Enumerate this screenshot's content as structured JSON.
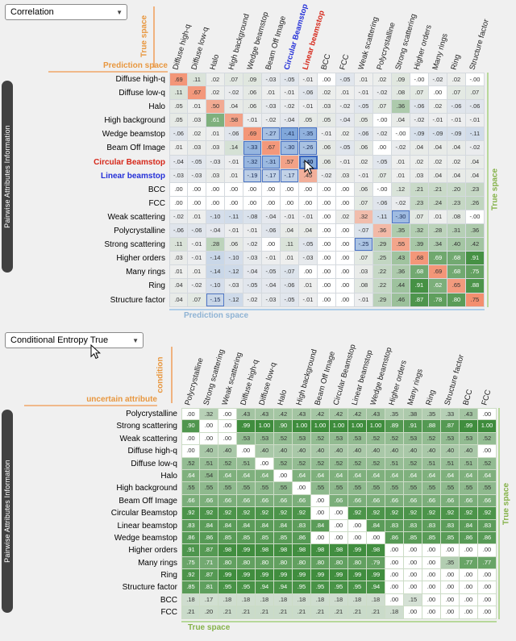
{
  "ui": {
    "background": "#f0f0f0",
    "panel1": {
      "dropdown_value": "Correlation",
      "sidebar_label": "Pairwise Attributes Information",
      "axis_top_vertical": "True space",
      "axis_top_left": "Prediction space",
      "axis_right": "True space",
      "axis_bottom": "Prediction space",
      "row_label_colors": {
        "6": "#d6281a",
        "7": "#2430d8"
      },
      "col_label_colors": {
        "6": "#2430d8",
        "7": "#d6281a"
      },
      "hover_cell": {
        "row": 6,
        "col": 7,
        "value": "-.40"
      }
    },
    "panel2": {
      "dropdown_value": "Conditional Entropy True",
      "sidebar_label": "Pairwise Attributes Information",
      "axis_top_vertical": "condition",
      "axis_top_left": "uncertain attribute",
      "axis_right": "True space",
      "axis_bottom": "True space"
    },
    "colors": {
      "orange_axis": "#e8973f",
      "green_axis": "#85b24a",
      "blue_axis": "#8fb3d4",
      "sidebar_bg": "#414141",
      "diag_salmon": "rgb(243,132,96)",
      "positive_green": "rgb(62,140,60)",
      "negative_blue": "rgb(96,146,212)"
    }
  },
  "chart_data": [
    {
      "type": "heatmap",
      "title": "Correlation",
      "legend_note": "diagonal = salmon, positive = green, negative = blue, range -1..1",
      "columns": [
        "Diffuse high-q",
        "Diffuse low-q",
        "Halo",
        "High background",
        "Wedge beamstop",
        "Beam Off Image",
        "Circular Beamstop",
        "Linear beamstop",
        "BCC",
        "FCC",
        "Weak scattering",
        "Polycrystalline",
        "Strong scattering",
        "Higher orders",
        "Many rings",
        "Ring",
        "Structure factor"
      ],
      "rows": [
        "Diffuse high-q",
        "Diffuse low-q",
        "Halo",
        "High background",
        "Wedge beamstop",
        "Beam Off Image",
        "Circular Beamstop",
        "Linear beamstop",
        "BCC",
        "FCC",
        "Weak scattering",
        "Polycrystalline",
        "Strong scattering",
        "Higher orders",
        "Many rings",
        "Ring",
        "Structure factor"
      ],
      "values": [
        [
          ".69",
          ".11",
          ".02",
          ".07",
          ".09",
          "-.03",
          "-.05",
          "-.01",
          ".00",
          "-.05",
          ".01",
          ".02",
          ".09",
          "-.00",
          "-.02",
          ".02",
          "-.00"
        ],
        [
          ".11",
          ".67",
          ".02",
          "-.02",
          ".06",
          ".01",
          "-.01",
          "-.06",
          ".02",
          ".01",
          "-.01",
          "-.02",
          ".08",
          ".07",
          ".00",
          ".07",
          ".07"
        ],
        [
          ".05",
          ".01",
          ".50",
          ".04",
          ".06",
          "-.03",
          "-.02",
          "-.01",
          ".03",
          "-.02",
          "-.05",
          ".07",
          ".36",
          "-.06",
          ".02",
          "-.06",
          "-.06"
        ],
        [
          ".05",
          ".03",
          ".61",
          ".58",
          "-.01",
          "-.02",
          "-.04",
          ".05",
          ".05",
          "-.04",
          ".05",
          "-.00",
          ".04",
          "-.02",
          "-.01",
          "-.01",
          "-.01"
        ],
        [
          "-.06",
          ".02",
          ".01",
          "-.06",
          ".69",
          "-.27",
          "-.41",
          "-.35",
          "-.01",
          ".02",
          "-.06",
          "-.02",
          "-.00",
          "-.09",
          "-.09",
          "-.09",
          "-.11"
        ],
        [
          ".01",
          ".03",
          ".03",
          ".14",
          "-.33",
          ".67",
          "-.30",
          "-.26",
          ".06",
          "-.05",
          ".06",
          ".00",
          "-.02",
          ".04",
          ".04",
          ".04",
          "-.02"
        ],
        [
          "-.04",
          "-.05",
          "-.03",
          "-.01",
          "-.32",
          "-.31",
          ".57",
          "-.40",
          ".06",
          "-.01",
          ".02",
          "-.05",
          ".01",
          ".02",
          ".02",
          ".02",
          ".04"
        ],
        [
          "-.03",
          "-.03",
          ".03",
          ".01",
          "-.19",
          "-.17",
          "-.17",
          ".45",
          "-.02",
          ".03",
          "-.01",
          ".07",
          ".01",
          ".03",
          ".04",
          ".04",
          ".04"
        ],
        [
          ".00",
          ".00",
          ".00",
          ".00",
          ".00",
          ".00",
          ".00",
          ".00",
          ".00",
          ".00",
          ".06",
          "-.00",
          ".12",
          ".21",
          ".21",
          ".20",
          ".23"
        ],
        [
          ".00",
          ".00",
          ".00",
          ".00",
          ".00",
          ".00",
          ".00",
          ".00",
          ".00",
          ".00",
          ".07",
          "-.06",
          "-.02",
          ".23",
          ".24",
          ".23",
          ".26"
        ],
        [
          "-.02",
          ".01",
          "-.10",
          "-.11",
          "-.08",
          "-.04",
          "-.01",
          "-.01",
          ".00",
          ".02",
          ".32",
          "-.11",
          "-.30",
          ".07",
          ".01",
          ".08",
          "-.00"
        ],
        [
          "-.06",
          "-.06",
          "-.04",
          "-.01",
          "-.01",
          "-.06",
          ".04",
          ".04",
          ".00",
          ".00",
          "-.07",
          ".36",
          ".35",
          ".32",
          ".28",
          ".31",
          ".36"
        ],
        [
          ".11",
          "-.01",
          ".28",
          ".06",
          "-.02",
          ".00",
          ".11",
          "-.05",
          ".00",
          ".00",
          "-.25",
          ".29",
          ".55",
          ".39",
          ".34",
          ".40",
          ".42"
        ],
        [
          ".03",
          "-.01",
          "-.14",
          "-.10",
          "-.03",
          "-.01",
          ".01",
          "-.03",
          ".00",
          ".00",
          ".07",
          ".25",
          ".43",
          ".68",
          ".69",
          ".68",
          ".91"
        ],
        [
          ".01",
          ".01",
          "-.14",
          "-.12",
          "-.04",
          "-.05",
          "-.07",
          ".00",
          ".00",
          ".00",
          ".03",
          ".22",
          ".36",
          ".68",
          ".69",
          ".68",
          ".75"
        ],
        [
          ".04",
          "-.02",
          "-.10",
          "-.03",
          "-.05",
          "-.04",
          "-.06",
          ".01",
          ".00",
          ".00",
          ".08",
          ".22",
          ".44",
          ".91",
          ".62",
          ".65",
          ".88"
        ],
        [
          ".04",
          ".07",
          "-.15",
          "-.12",
          "-.02",
          "-.03",
          "-.05",
          "-.01",
          ".00",
          ".00",
          "-.01",
          ".29",
          ".46",
          ".87",
          ".78",
          ".80",
          ".75"
        ]
      ]
    },
    {
      "type": "heatmap",
      "title": "Conditional Entropy True",
      "legend_note": "white (0) to dark green (1)",
      "columns": [
        "Polycrystalline",
        "Strong scattering",
        "Weak scattering",
        "Diffuse high-q",
        "Diffuse low-q",
        "Halo",
        "High background",
        "Beam Off Image",
        "Circular Beamstop",
        "Linear beamstop",
        "Wedge beamstop",
        "Higher orders",
        "Many rings",
        "Ring",
        "Structure factor",
        "BCC",
        "FCC"
      ],
      "rows": [
        "Polycrystalline",
        "Strong scattering",
        "Weak scattering",
        "Diffuse high-q",
        "Diffuse low-q",
        "Halo",
        "High background",
        "Beam Off Image",
        "Circular Beamstop",
        "Linear beamstop",
        "Wedge beamstop",
        "Higher orders",
        "Many rings",
        "Ring",
        "Structure factor",
        "BCC",
        "FCC"
      ],
      "values": [
        [
          ".00",
          ".32",
          ".00",
          ".43",
          ".43",
          ".42",
          ".43",
          ".42",
          ".42",
          ".42",
          ".43",
          ".35",
          ".38",
          ".35",
          ".33",
          ".43",
          ".00"
        ],
        [
          ".90",
          ".00",
          ".00",
          ".99",
          "1.00",
          ".90",
          "1.00",
          "1.00",
          "1.00",
          "1.00",
          "1.00",
          ".89",
          ".91",
          ".88",
          ".87",
          ".99",
          "1.00"
        ],
        [
          ".00",
          ".00",
          ".00",
          ".53",
          ".53",
          ".52",
          ".53",
          ".52",
          ".53",
          ".53",
          ".52",
          ".52",
          ".53",
          ".52",
          ".53",
          ".53",
          ".52"
        ],
        [
          ".00",
          ".40",
          ".40",
          ".00",
          ".40",
          ".40",
          ".40",
          ".40",
          ".40",
          ".40",
          ".40",
          ".40",
          ".40",
          ".40",
          ".40",
          ".40",
          ".00"
        ],
        [
          ".52",
          ".51",
          ".52",
          ".51",
          ".00",
          ".52",
          ".52",
          ".52",
          ".52",
          ".52",
          ".52",
          ".51",
          ".52",
          ".51",
          ".51",
          ".51",
          ".52"
        ],
        [
          ".64",
          ".54",
          ".64",
          ".64",
          ".64",
          ".00",
          ".64",
          ".64",
          ".64",
          ".64",
          ".64",
          ".64",
          ".64",
          ".64",
          ".64",
          ".64",
          ".64"
        ],
        [
          ".55",
          ".55",
          ".55",
          ".55",
          ".55",
          ".55",
          ".00",
          ".55",
          ".55",
          ".55",
          ".55",
          ".55",
          ".55",
          ".55",
          ".55",
          ".55",
          ".55"
        ],
        [
          ".66",
          ".66",
          ".66",
          ".66",
          ".66",
          ".66",
          ".66",
          ".00",
          ".66",
          ".66",
          ".66",
          ".66",
          ".66",
          ".66",
          ".66",
          ".66",
          ".66"
        ],
        [
          ".92",
          ".92",
          ".92",
          ".92",
          ".92",
          ".92",
          ".92",
          ".00",
          ".00",
          ".92",
          ".92",
          ".92",
          ".92",
          ".92",
          ".92",
          ".92",
          ".92"
        ],
        [
          ".83",
          ".84",
          ".84",
          ".84",
          ".84",
          ".84",
          ".83",
          ".84",
          ".00",
          ".00",
          ".84",
          ".83",
          ".83",
          ".83",
          ".83",
          ".84",
          ".83"
        ],
        [
          ".86",
          ".86",
          ".85",
          ".85",
          ".85",
          ".85",
          ".86",
          ".00",
          ".00",
          ".00",
          ".00",
          ".86",
          ".85",
          ".85",
          ".85",
          ".86",
          ".86"
        ],
        [
          ".91",
          ".87",
          ".98",
          ".99",
          ".98",
          ".98",
          ".98",
          ".98",
          ".98",
          ".99",
          ".98",
          ".00",
          ".00",
          ".00",
          ".00",
          ".00",
          ".00"
        ],
        [
          ".75",
          ".71",
          ".80",
          ".80",
          ".80",
          ".80",
          ".80",
          ".80",
          ".80",
          ".80",
          ".79",
          ".00",
          ".00",
          ".00",
          ".35",
          ".77",
          ".77"
        ],
        [
          ".92",
          ".87",
          ".99",
          ".99",
          ".99",
          ".99",
          ".99",
          ".99",
          ".99",
          ".99",
          ".99",
          ".00",
          ".00",
          ".00",
          ".00",
          ".00",
          ".00"
        ],
        [
          ".85",
          ".81",
          ".95",
          ".95",
          ".94",
          ".94",
          ".95",
          ".95",
          ".95",
          ".95",
          ".94",
          ".00",
          ".00",
          ".00",
          ".00",
          ".00",
          ".00"
        ],
        [
          ".18",
          ".17",
          ".18",
          ".18",
          ".18",
          ".18",
          ".18",
          ".18",
          ".18",
          ".18",
          ".18",
          ".00",
          ".15",
          ".00",
          ".00",
          ".00",
          ".00"
        ],
        [
          ".21",
          ".20",
          ".21",
          ".21",
          ".21",
          ".21",
          ".21",
          ".21",
          ".21",
          ".21",
          ".21",
          ".18",
          ".00",
          ".00",
          ".00",
          ".00",
          ".00"
        ]
      ]
    }
  ]
}
